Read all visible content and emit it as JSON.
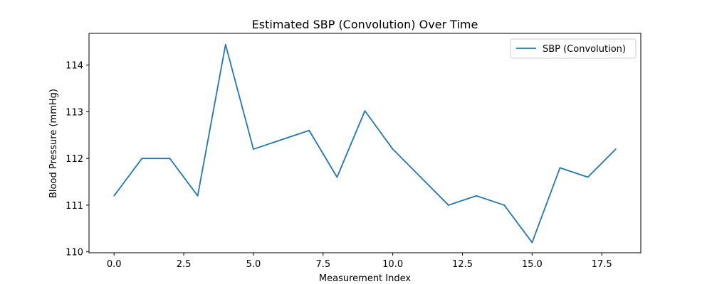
{
  "chart_data": {
    "type": "line",
    "title": "Estimated SBP (Convolution) Over Time",
    "xlabel": "Measurement Index",
    "ylabel": "Blood Pressure (mmHg)",
    "xlim": [
      -0.9,
      18.9
    ],
    "ylim": [
      109.98,
      114.68
    ],
    "xticks": [
      0.0,
      2.5,
      5.0,
      7.5,
      10.0,
      12.5,
      15.0,
      17.5
    ],
    "xtick_labels": [
      "0.0",
      "2.5",
      "5.0",
      "7.5",
      "10.0",
      "12.5",
      "15.0",
      "17.5"
    ],
    "yticks": [
      110,
      111,
      112,
      113,
      114
    ],
    "ytick_labels": [
      "110",
      "111",
      "112",
      "113",
      "114"
    ],
    "grid": false,
    "legend_position": "top-right",
    "series": [
      {
        "name": "SBP (Convolution)",
        "color": "#1f77b4",
        "x": [
          0,
          1,
          2,
          3,
          4,
          5,
          6,
          7,
          8,
          9,
          10,
          11,
          12,
          13,
          14,
          15,
          16,
          17,
          18
        ],
        "values": [
          111.2,
          112.0,
          112.0,
          111.2,
          114.44,
          112.2,
          112.4,
          112.6,
          111.6,
          113.02,
          112.2,
          111.6,
          111.0,
          111.2,
          111.0,
          110.2,
          111.8,
          111.6,
          112.2
        ]
      }
    ]
  }
}
